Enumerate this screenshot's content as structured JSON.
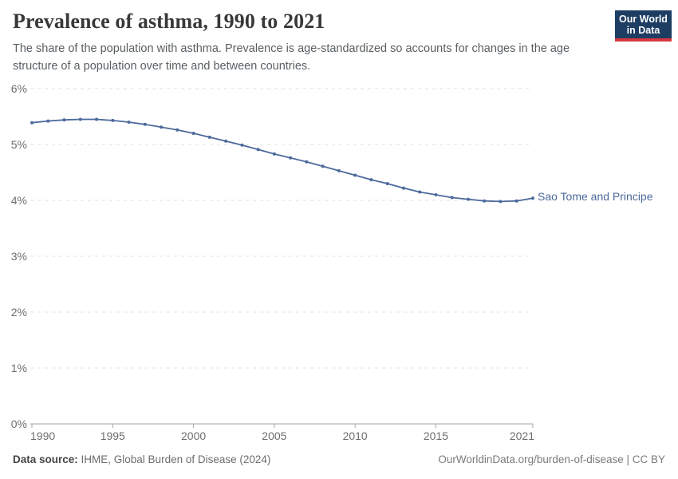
{
  "header": {
    "title": "Prevalence of asthma, 1990 to 2021",
    "subtitle": "The share of the population with asthma. Prevalence is age-standardized so accounts for changes in the age structure of a population over time and between countries."
  },
  "logo": {
    "line1": "Our World",
    "line2": "in Data",
    "bg_color": "#1d3d63",
    "accent_color": "#d7383f"
  },
  "chart_data": {
    "type": "line",
    "title": "Prevalence of asthma, 1990 to 2021",
    "x": [
      1990,
      1991,
      1992,
      1993,
      1994,
      1995,
      1996,
      1997,
      1998,
      1999,
      2000,
      2001,
      2002,
      2003,
      2004,
      2005,
      2006,
      2007,
      2008,
      2009,
      2010,
      2011,
      2012,
      2013,
      2014,
      2015,
      2016,
      2017,
      2018,
      2019,
      2020,
      2021
    ],
    "series": [
      {
        "name": "Sao Tome and Principe",
        "color": "#4c6a9c",
        "values": [
          5.39,
          5.42,
          5.44,
          5.45,
          5.45,
          5.43,
          5.4,
          5.36,
          5.31,
          5.26,
          5.2,
          5.13,
          5.06,
          4.99,
          4.91,
          4.83,
          4.76,
          4.69,
          4.61,
          4.53,
          4.45,
          4.37,
          4.3,
          4.22,
          4.15,
          4.1,
          4.05,
          4.02,
          3.99,
          3.98,
          3.99,
          4.04
        ]
      }
    ],
    "xlabel": "",
    "ylabel": "",
    "y_unit": "%",
    "ylim": [
      0,
      6
    ],
    "xlim": [
      1990,
      2021
    ],
    "y_ticks": [
      0,
      1,
      2,
      3,
      4,
      5,
      6
    ],
    "x_ticks": [
      1990,
      1995,
      2000,
      2005,
      2010,
      2015,
      2021
    ],
    "grid": "horizontal-dashed",
    "legend": "line-end-label"
  },
  "colors": {
    "grid": "#e2e2e2",
    "axis": "#a5a5a5",
    "tick_label": "#6e6e6e",
    "line": "#4c6a9c"
  },
  "footer": {
    "source_label": "Data source:",
    "source_value": " IHME, Global Burden of Disease (2024)",
    "credit": "OurWorldinData.org/burden-of-disease | CC BY"
  }
}
